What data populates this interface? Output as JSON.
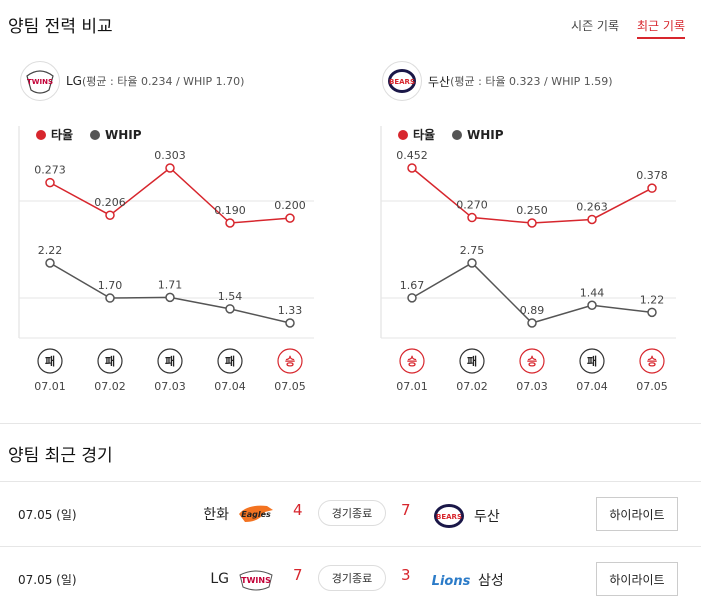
{
  "page": {
    "title": "양팀 전력 비교",
    "tabs": [
      {
        "label": "시즌 기록",
        "active": false
      },
      {
        "label": "최근 기록",
        "active": true
      }
    ],
    "recent_title": "양팀 최근 경기"
  },
  "colors": {
    "avg": "#d7262d",
    "whip": "#555555",
    "accent": "#d7262d"
  },
  "teams": [
    {
      "name": "LG",
      "stats_text": "(평균 : 타율 0.234 / WHIP 1.70)",
      "logo_text": "TWINS",
      "logo_color": "#c30037"
    },
    {
      "name": "두산",
      "stats_text": "(평균 : 타율 0.323 / WHIP 1.59)",
      "logo_text": "BEARS",
      "logo_color": "#1a1748"
    }
  ],
  "legend": {
    "avg": "타율",
    "whip": "WHIP"
  },
  "chart_data": [
    {
      "type": "line",
      "team": "LG",
      "categories": [
        "07.01",
        "07.02",
        "07.03",
        "07.04",
        "07.05"
      ],
      "series": [
        {
          "name": "타율",
          "values": [
            0.273,
            0.206,
            0.303,
            0.19,
            0.2
          ],
          "labels": [
            "0.273",
            "0.206",
            "0.303",
            "0.190",
            "0.200"
          ]
        },
        {
          "name": "WHIP",
          "values": [
            2.22,
            1.7,
            1.71,
            1.54,
            1.33
          ],
          "labels": [
            "2.22",
            "1.70",
            "1.71",
            "1.54",
            "1.33"
          ]
        }
      ],
      "results": [
        "패",
        "패",
        "패",
        "패",
        "승"
      ]
    },
    {
      "type": "line",
      "team": "두산",
      "categories": [
        "07.01",
        "07.02",
        "07.03",
        "07.04",
        "07.05"
      ],
      "series": [
        {
          "name": "타율",
          "values": [
            0.452,
            0.27,
            0.25,
            0.263,
            0.378
          ],
          "labels": [
            "0.452",
            "0.270",
            "0.250",
            "0.263",
            "0.378"
          ]
        },
        {
          "name": "WHIP",
          "values": [
            1.67,
            2.75,
            0.89,
            1.44,
            1.22
          ],
          "labels": [
            "1.67",
            "2.75",
            "0.89",
            "1.44",
            "1.22"
          ]
        }
      ],
      "results": [
        "승",
        "패",
        "승",
        "패",
        "승"
      ]
    }
  ],
  "games": [
    {
      "date": "07.05 (일)",
      "home": "한화",
      "home_logo": "Eagles",
      "home_score": "4",
      "status": "경기종료",
      "away_score": "7",
      "away": "두산",
      "away_logo": "BEARS",
      "highlight": "하이라이트"
    },
    {
      "date": "07.05 (일)",
      "home": "LG",
      "home_logo": "TWINS",
      "home_score": "7",
      "status": "경기종료",
      "away_score": "3",
      "away": "삼성",
      "away_logo": "Lions",
      "highlight": "하이라이트"
    }
  ]
}
